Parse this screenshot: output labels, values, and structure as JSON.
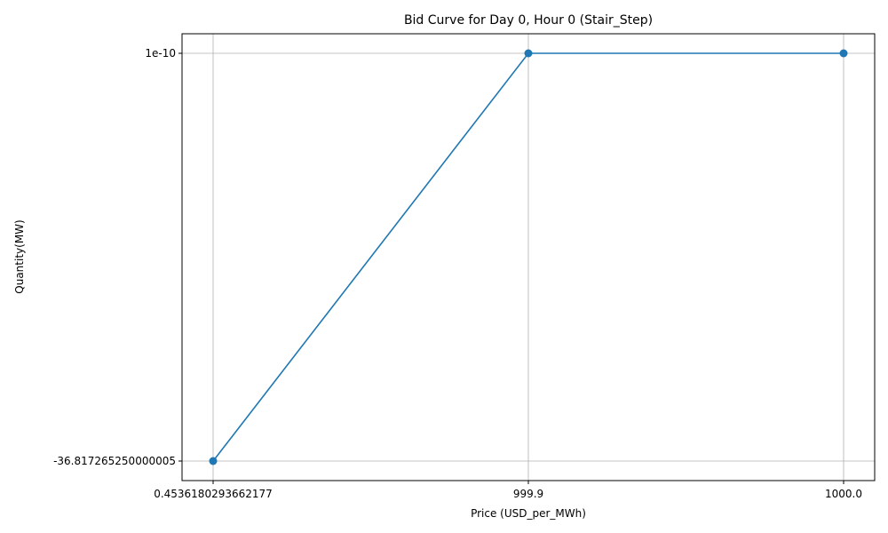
{
  "chart_data": {
    "type": "line",
    "title": "Bid Curve for Day 0, Hour 0 (Stair_Step)",
    "xlabel": "Price (USD_per_MWh)",
    "ylabel": "Quantity(MW)",
    "x_ticks": [
      "0.4536180293662177",
      "999.9",
      "1000.0"
    ],
    "y_ticks": [
      "-36.817265250000005",
      "1e-10"
    ],
    "series": [
      {
        "color": "#1f77b4",
        "marker": "circle",
        "points": [
          {
            "x": "0.4536180293662177",
            "y": "-36.817265250000005"
          },
          {
            "x": "999.9",
            "y": "1e-10"
          },
          {
            "x": "1000.0",
            "y": "1e-10"
          }
        ]
      }
    ],
    "x_axis_scale": "categorical",
    "y_axis_scale": "categorical",
    "grid": true,
    "legend": "none"
  }
}
